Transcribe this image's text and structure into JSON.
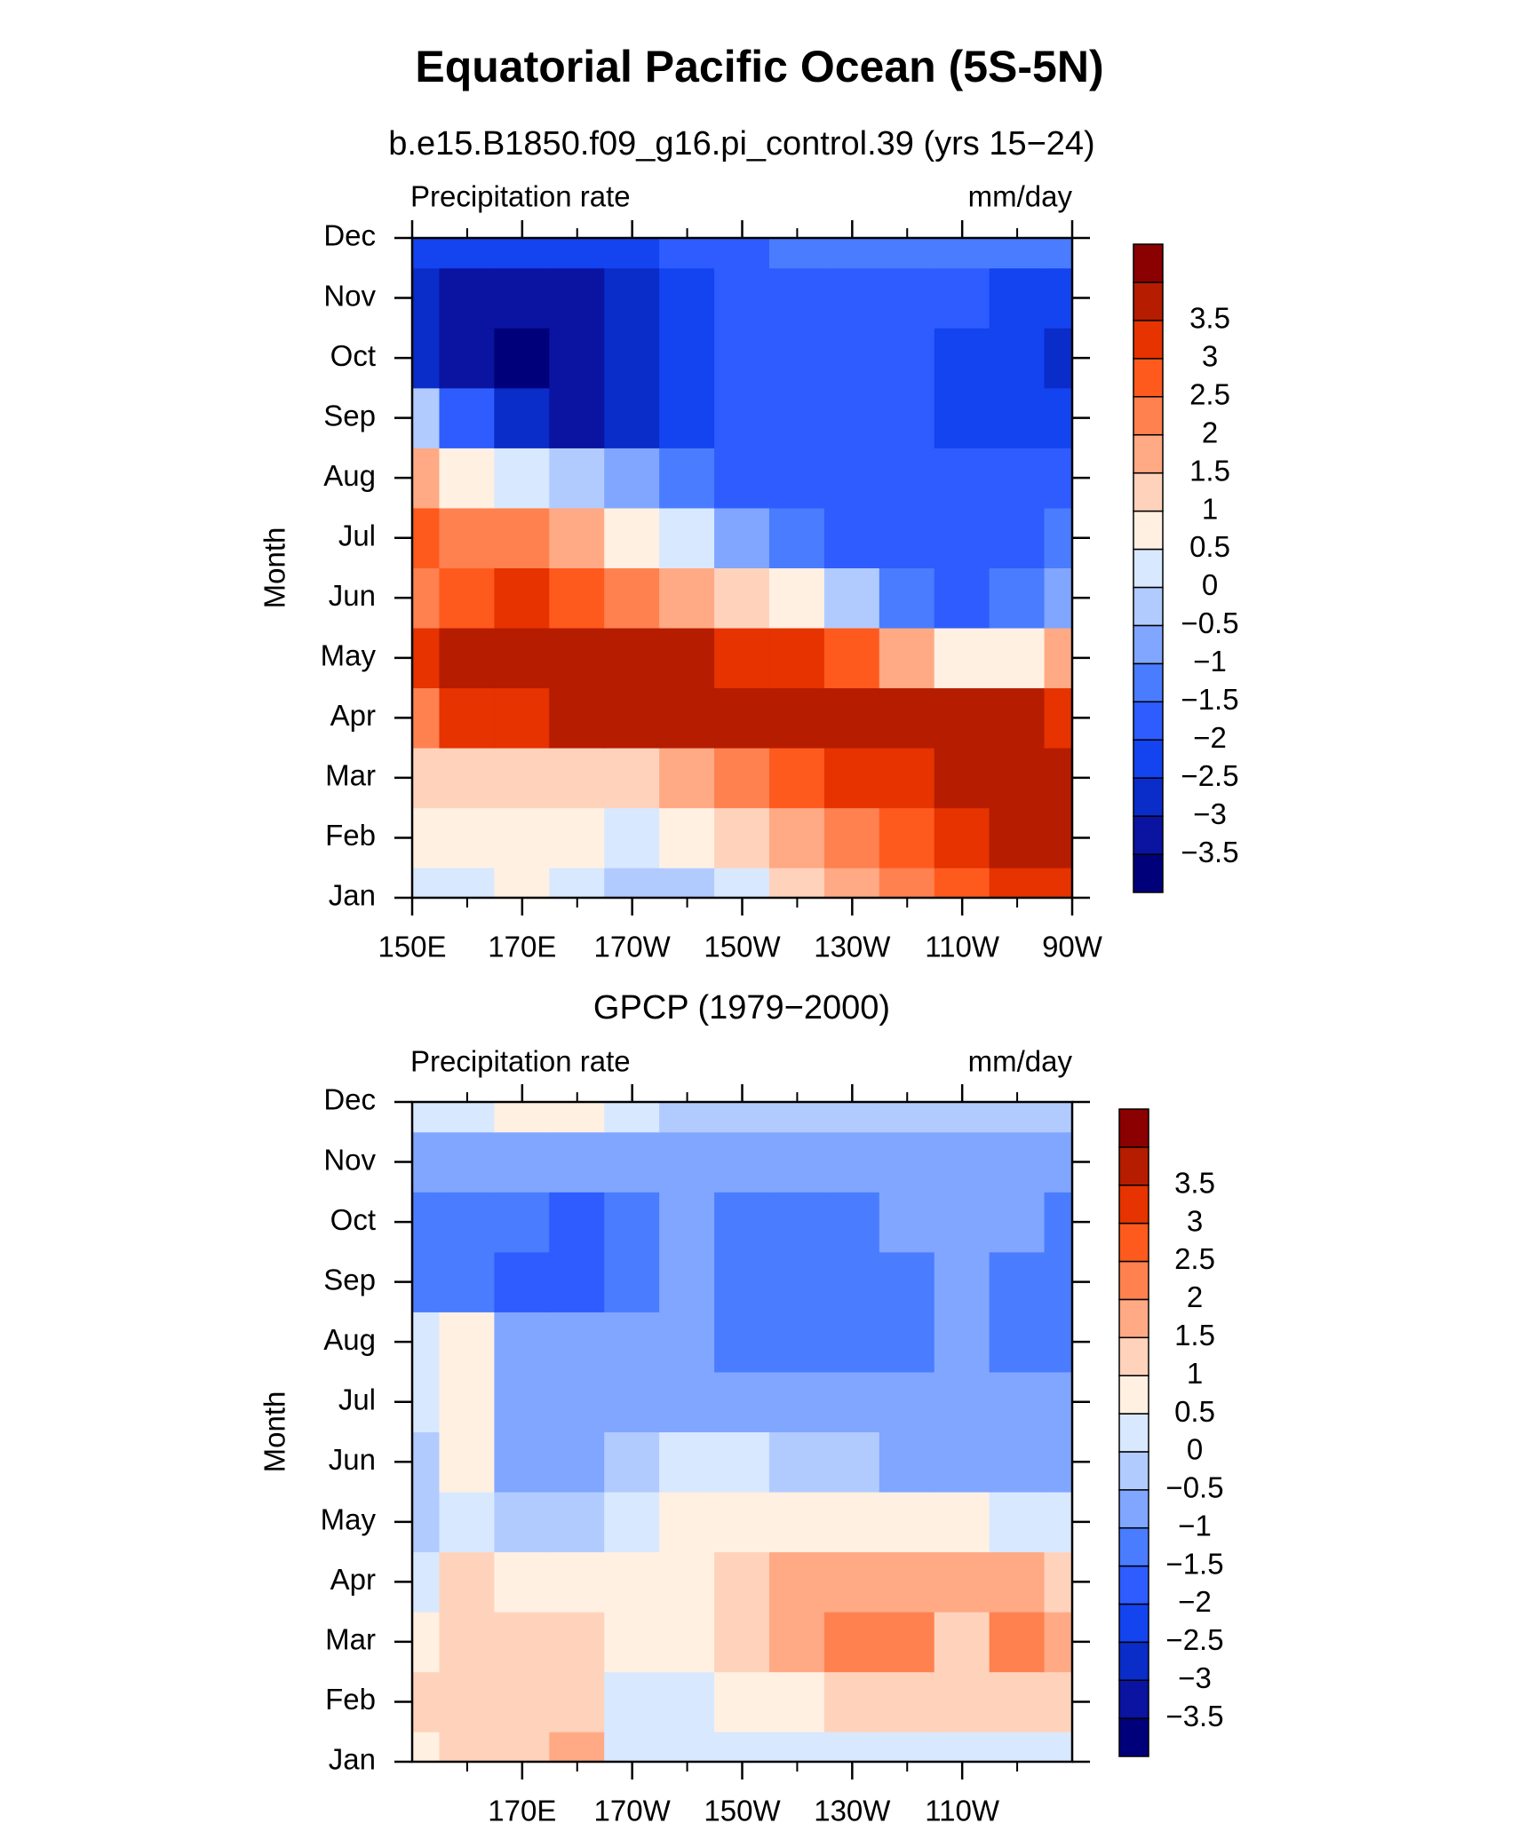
{
  "title": "Equatorial Pacific Ocean (5S-5N)",
  "chart_data": [
    {
      "type": "contour",
      "title": "b.e15.B1850.f09_g16.pi_control.39 (yrs 15−24)",
      "left_label": "Precipitation rate",
      "right_label": "mm/day",
      "ylabel": "Month",
      "categories": [
        "Jan",
        "Feb",
        "Mar",
        "Apr",
        "May",
        "Jun",
        "Jul",
        "Aug",
        "Sep",
        "Oct",
        "Nov",
        "Dec"
      ],
      "x": [
        150,
        160,
        170,
        180,
        190,
        200,
        210,
        220,
        230,
        240,
        250,
        260,
        270
      ],
      "xlim": [
        150,
        270
      ],
      "xticks": [
        {
          "value": 150,
          "label": "150E"
        },
        {
          "value": 170,
          "label": "170E"
        },
        {
          "value": 190,
          "label": "170W"
        },
        {
          "value": 210,
          "label": "150W"
        },
        {
          "value": 230,
          "label": "130W"
        },
        {
          "value": 250,
          "label": "110W"
        },
        {
          "value": 270,
          "label": "90W"
        }
      ],
      "z": [
        [
          0.2,
          0.3,
          0.6,
          0.3,
          -0.2,
          -0.3,
          0.3,
          1.2,
          1.8,
          2.4,
          2.8,
          3.0,
          3.2
        ],
        [
          0.6,
          0.8,
          0.9,
          0.6,
          0.4,
          0.6,
          1.0,
          1.6,
          2.2,
          2.8,
          3.2,
          3.5,
          3.6
        ],
        [
          1.2,
          1.2,
          1.3,
          1.3,
          1.4,
          1.6,
          2.0,
          2.5,
          3.0,
          3.4,
          3.7,
          3.8,
          3.8
        ],
        [
          2.3,
          3.0,
          3.4,
          3.6,
          3.7,
          3.7,
          3.8,
          3.8,
          3.8,
          3.8,
          3.8,
          3.7,
          3.2
        ],
        [
          3.0,
          3.7,
          3.9,
          3.9,
          3.8,
          3.7,
          3.4,
          3.0,
          2.5,
          1.8,
          0.8,
          0.8,
          1.8
        ],
        [
          2.4,
          2.8,
          3.0,
          2.8,
          2.4,
          1.9,
          1.4,
          0.6,
          -0.4,
          -1.2,
          -1.6,
          -1.4,
          -0.6
        ],
        [
          2.8,
          2.4,
          2.2,
          1.5,
          0.8,
          0.0,
          -0.8,
          -1.4,
          -1.6,
          -1.6,
          -1.7,
          -1.6,
          -1.2
        ],
        [
          1.5,
          0.8,
          0.2,
          -0.5,
          -1.0,
          -1.5,
          -1.7,
          -1.7,
          -1.7,
          -1.7,
          -1.7,
          -1.8,
          -1.7
        ],
        [
          -0.5,
          -1.8,
          -2.8,
          -3.1,
          -2.8,
          -2.2,
          -1.8,
          -1.7,
          -1.7,
          -1.8,
          -2.1,
          -2.3,
          -2.3
        ],
        [
          -2.8,
          -3.2,
          -3.7,
          -3.3,
          -2.7,
          -2.2,
          -1.8,
          -1.7,
          -1.7,
          -1.8,
          -2.2,
          -2.5,
          -2.7
        ],
        [
          -2.9,
          -3.1,
          -3.5,
          -3.1,
          -2.6,
          -2.2,
          -1.8,
          -1.7,
          -1.7,
          -1.8,
          -2.0,
          -2.2,
          -2.3
        ],
        [
          -2.5,
          -2.4,
          -2.3,
          -2.2,
          -2.1,
          -1.9,
          -1.7,
          -1.5,
          -1.3,
          -1.2,
          -1.3,
          -1.4,
          -1.4
        ]
      ],
      "levels": [
        {
          "value": -3.5,
          "label": "−3.5"
        },
        {
          "value": -3,
          "label": "−3"
        },
        {
          "value": -2.5,
          "label": "−2.5"
        },
        {
          "value": -2,
          "label": "−2"
        },
        {
          "value": -1.5,
          "label": "−1.5"
        },
        {
          "value": -1,
          "label": "−1"
        },
        {
          "value": -0.5,
          "label": "−0.5"
        },
        0,
        0.5,
        1,
        1.5,
        2,
        2.5,
        3,
        3.5
      ],
      "colors": [
        "#00007a",
        "#0a14a0",
        "#0a2cc8",
        "#1444f0",
        "#2e5cff",
        "#4a7cff",
        "#80a6ff",
        "#b2cbff",
        "#d8e8ff",
        "#fff0e2",
        "#ffd3bb",
        "#ffaa85",
        "#ff8150",
        "#ff5a1e",
        "#e63300",
        "#b51c00",
        "#8b0000"
      ]
    },
    {
      "type": "contour",
      "title": "GPCP (1979−2000)",
      "left_label": "Precipitation rate",
      "right_label": "mm/day",
      "ylabel": "Month",
      "categories": [
        "Jan",
        "Feb",
        "Mar",
        "Apr",
        "May",
        "Jun",
        "Jul",
        "Aug",
        "Sep",
        "Oct",
        "Nov",
        "Dec"
      ],
      "x": [
        150,
        160,
        170,
        180,
        190,
        200,
        210,
        220,
        230,
        240,
        250,
        260,
        270
      ],
      "xlim": [
        150,
        270
      ],
      "xticks": [
        {
          "value": 170,
          "label": "170E"
        },
        {
          "value": 190,
          "label": "170W"
        },
        {
          "value": 210,
          "label": "150W"
        },
        {
          "value": 230,
          "label": "130W"
        },
        {
          "value": 250,
          "label": "110W"
        }
      ],
      "z": [
        [
          0.6,
          1.0,
          1.4,
          1.6,
          0.3,
          0.2,
          0.2,
          0.2,
          0.2,
          0.2,
          0.2,
          0.2,
          0.2
        ],
        [
          1.0,
          1.2,
          1.2,
          1.1,
          0.4,
          0.4,
          0.7,
          0.9,
          1.0,
          1.1,
          1.2,
          1.3,
          1.3
        ],
        [
          0.9,
          1.2,
          1.3,
          1.1,
          0.5,
          0.8,
          1.3,
          1.6,
          2.1,
          2.0,
          1.4,
          2.1,
          1.6
        ],
        [
          0.4,
          1.0,
          0.9,
          0.7,
          0.5,
          0.7,
          1.3,
          1.6,
          1.8,
          1.7,
          1.6,
          1.8,
          1.4
        ],
        [
          -0.4,
          0.4,
          -0.5,
          -0.4,
          0.4,
          0.6,
          0.7,
          0.7,
          0.6,
          0.6,
          0.5,
          0.4,
          0.3
        ],
        [
          -0.2,
          0.6,
          -0.6,
          -0.7,
          -0.2,
          0.3,
          0.1,
          -0.4,
          -0.5,
          -0.6,
          -0.6,
          -0.6,
          -0.6
        ],
        [
          0.2,
          0.6,
          -0.7,
          -0.8,
          -0.8,
          -0.7,
          -0.7,
          -0.8,
          -0.8,
          -0.8,
          -0.8,
          -0.9,
          -0.8
        ],
        [
          0.3,
          0.5,
          -0.7,
          -0.9,
          -0.9,
          -0.8,
          -1.1,
          -1.2,
          -1.2,
          -1.1,
          -0.9,
          -1.1,
          -1.1
        ],
        [
          -1.3,
          -1.2,
          -1.7,
          -1.6,
          -1.1,
          -1.0,
          -1.2,
          -1.3,
          -1.3,
          -1.1,
          -0.8,
          -1.2,
          -1.3
        ],
        [
          -1.2,
          -1.1,
          -1.4,
          -1.7,
          -1.2,
          -0.8,
          -1.1,
          -1.1,
          -1.1,
          -0.9,
          -0.8,
          -0.9,
          -1.2
        ],
        [
          -0.8,
          -0.7,
          -0.8,
          -0.7,
          -0.8,
          -0.7,
          -0.7,
          -0.6,
          -0.6,
          -0.6,
          -0.6,
          -0.6,
          -0.6
        ],
        [
          0.0,
          0.4,
          0.6,
          0.5,
          0.2,
          -0.1,
          -0.3,
          -0.3,
          -0.2,
          -0.4,
          -0.5,
          -0.5,
          -0.5
        ]
      ],
      "levels": [
        {
          "value": -3.5,
          "label": "−3.5"
        },
        {
          "value": -3,
          "label": "−3"
        },
        {
          "value": -2.5,
          "label": "−2.5"
        },
        {
          "value": -2,
          "label": "−2"
        },
        {
          "value": -1.5,
          "label": "−1.5"
        },
        {
          "value": -1,
          "label": "−1"
        },
        {
          "value": -0.5,
          "label": "−0.5"
        },
        0,
        0.5,
        1,
        1.5,
        2,
        2.5,
        3,
        3.5
      ],
      "colors": [
        "#00007a",
        "#0a14a0",
        "#0a2cc8",
        "#1444f0",
        "#2e5cff",
        "#4a7cff",
        "#80a6ff",
        "#b2cbff",
        "#d8e8ff",
        "#fff0e2",
        "#ffd3bb",
        "#ffaa85",
        "#ff8150",
        "#ff5a1e",
        "#e63300",
        "#b51c00",
        "#8b0000"
      ]
    }
  ]
}
